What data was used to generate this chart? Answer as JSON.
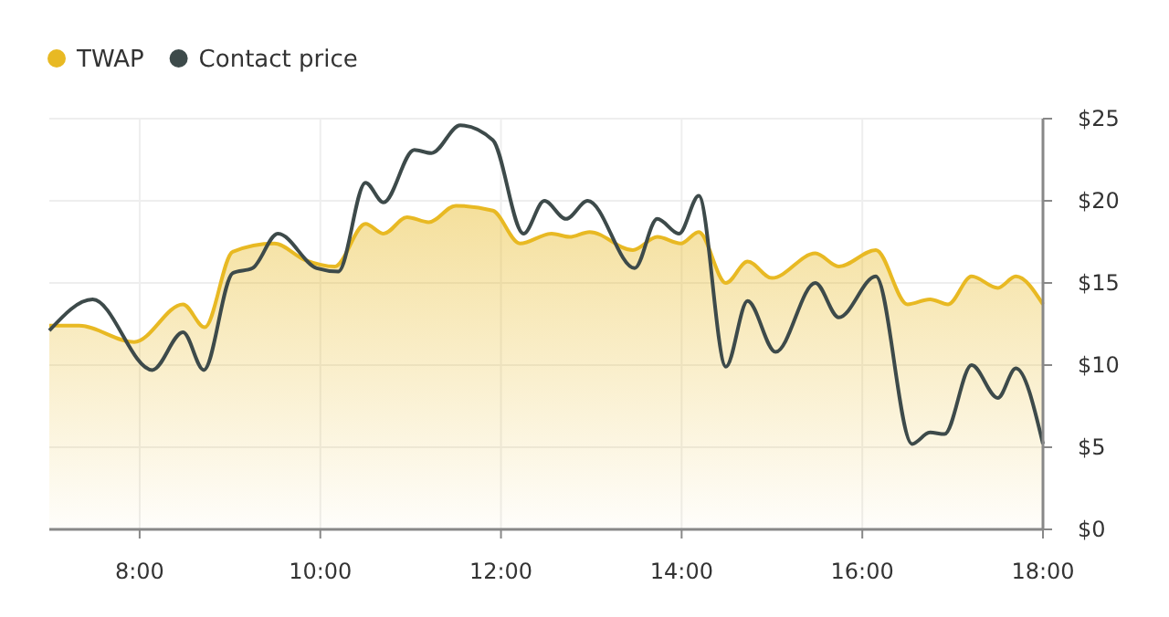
{
  "chart_data": {
    "type": "line",
    "legend": "top left",
    "grid": true,
    "xlim": [
      7,
      18
    ],
    "xticks": [
      {
        "value": 8,
        "label": "8:00"
      },
      {
        "value": 10,
        "label": "10:00"
      },
      {
        "value": 12,
        "label": "12:00"
      },
      {
        "value": 14,
        "label": "14:00"
      },
      {
        "value": 16,
        "label": "16:00"
      },
      {
        "value": 18,
        "label": "18:00"
      }
    ],
    "ylim": [
      0,
      25
    ],
    "yticks": [
      {
        "value": 0,
        "label": "$0"
      },
      {
        "value": 5,
        "label": "$5"
      },
      {
        "value": 10,
        "label": "$10"
      },
      {
        "value": 15,
        "label": "$15"
      },
      {
        "value": 20,
        "label": "$20"
      },
      {
        "value": 25,
        "label": "$25"
      }
    ],
    "series": [
      {
        "name": "TWAP",
        "type": "area",
        "color": "#e8b923",
        "x": [
          7.0,
          7.33,
          7.94,
          8.48,
          8.72,
          9.03,
          9.49,
          9.83,
          10.16,
          10.5,
          10.7,
          10.96,
          11.2,
          11.5,
          11.91,
          12.21,
          12.56,
          12.76,
          12.98,
          13.46,
          13.73,
          13.99,
          14.19,
          14.49,
          14.73,
          15.0,
          15.48,
          15.74,
          16.15,
          16.5,
          16.75,
          16.95,
          17.21,
          17.5,
          17.7,
          18.0
        ],
        "values": [
          12.4,
          12.4,
          11.4,
          13.7,
          12.3,
          16.9,
          17.4,
          16.4,
          16.0,
          18.6,
          18.0,
          19.0,
          18.7,
          19.7,
          19.4,
          17.4,
          18.0,
          17.8,
          18.1,
          17.0,
          17.8,
          17.4,
          18.1,
          15.0,
          16.3,
          15.3,
          16.8,
          16.0,
          17.0,
          13.7,
          14.0,
          13.7,
          15.4,
          14.7,
          15.4,
          13.7
        ]
      },
      {
        "name": "Contact price",
        "color": "#3d4a4a",
        "x": [
          7.0,
          7.48,
          8.14,
          8.48,
          8.71,
          9.03,
          9.25,
          9.53,
          9.96,
          10.2,
          10.5,
          10.7,
          11.04,
          11.23,
          11.55,
          11.91,
          12.25,
          12.48,
          12.72,
          12.96,
          13.48,
          13.73,
          13.97,
          14.19,
          14.49,
          14.73,
          15.04,
          15.48,
          15.74,
          16.15,
          16.55,
          16.75,
          16.91,
          17.21,
          17.5,
          17.7,
          18.0
        ],
        "values": [
          12.1,
          14.0,
          9.7,
          12.0,
          9.7,
          15.6,
          15.9,
          18.0,
          15.9,
          15.7,
          21.1,
          19.9,
          23.1,
          22.9,
          24.6,
          23.7,
          18.0,
          20.0,
          18.9,
          20.0,
          15.9,
          18.9,
          18.0,
          20.3,
          9.9,
          13.9,
          10.8,
          15.0,
          12.9,
          15.4,
          5.2,
          5.9,
          5.8,
          10.0,
          8.0,
          9.8,
          5.2
        ]
      }
    ]
  }
}
